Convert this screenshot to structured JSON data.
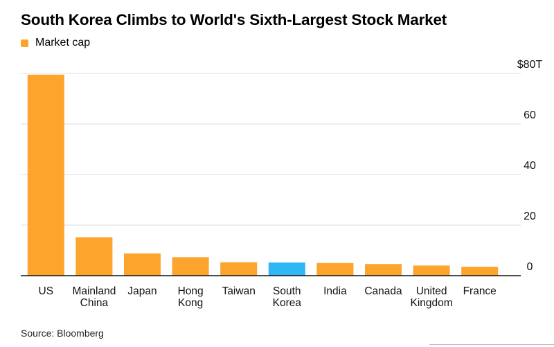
{
  "title": "South Korea Climbs to World's Sixth-Largest Stock Market",
  "legend": {
    "label": "Market cap",
    "color": "#fca42c"
  },
  "source": "Source: Bloomberg",
  "colors": {
    "bar": "#fca42c",
    "highlight": "#2fb6f5",
    "grid": "#dcdcdc",
    "axis": "#111111"
  },
  "chart_data": {
    "type": "bar",
    "categories": [
      "US",
      "Mainland China",
      "Japan",
      "Hong Kong",
      "Taiwan",
      "South Korea",
      "India",
      "Canada",
      "United Kingdom",
      "France"
    ],
    "category_lines": [
      [
        "US"
      ],
      [
        "Mainland",
        "China"
      ],
      [
        "Japan"
      ],
      [
        "Hong",
        "Kong"
      ],
      [
        "Taiwan"
      ],
      [
        "South",
        "Korea"
      ],
      [
        "India"
      ],
      [
        "Canada"
      ],
      [
        "United",
        "Kingdom"
      ],
      [
        "France"
      ]
    ],
    "series": [
      {
        "name": "Market cap",
        "values": [
          79.5,
          15.2,
          8.8,
          7.3,
          5.3,
          5.2,
          5.0,
          4.6,
          4.0,
          3.5
        ]
      }
    ],
    "highlight": "South Korea",
    "ylim": [
      0,
      80
    ],
    "yticks": [
      0,
      20,
      40,
      60,
      80
    ],
    "ytick_labels": [
      "0",
      "20",
      "40",
      "60",
      "$80T"
    ],
    "y_axis_position": "right",
    "grid": true,
    "legend_position": "top-left"
  }
}
